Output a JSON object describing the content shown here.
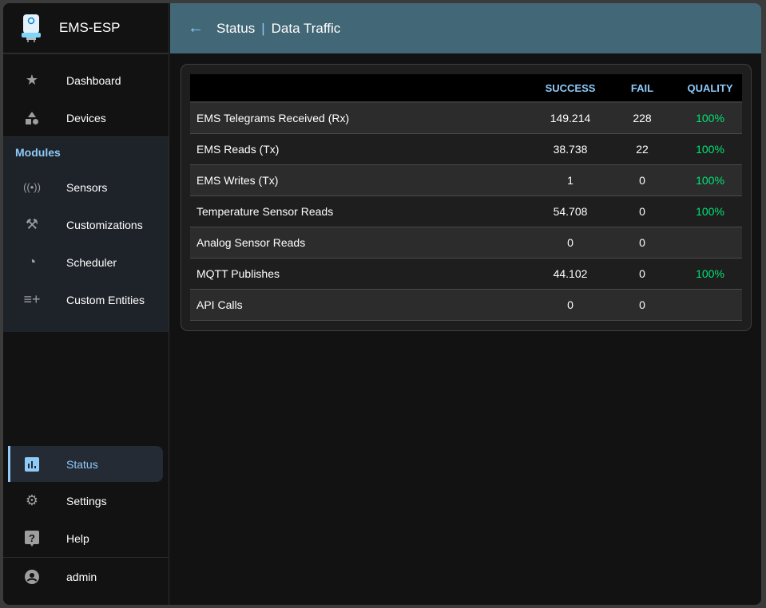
{
  "app": {
    "title": "EMS-ESP"
  },
  "header": {
    "back_icon": "arrow-left-icon",
    "section": "Status",
    "page": "Data Traffic"
  },
  "sidebar": {
    "top": [
      {
        "label": "Dashboard",
        "icon": "star-icon"
      },
      {
        "label": "Devices",
        "icon": "shapes-icon"
      }
    ],
    "modules_title": "Modules",
    "modules": [
      {
        "label": "Sensors",
        "icon": "sensors-icon"
      },
      {
        "label": "Customizations",
        "icon": "tools-icon"
      },
      {
        "label": "Scheduler",
        "icon": "clock-plus-icon"
      },
      {
        "label": "Custom Entities",
        "icon": "playlist-add-icon"
      }
    ],
    "bottom": [
      {
        "label": "Status",
        "icon": "bar-chart-icon",
        "active": true
      },
      {
        "label": "Settings",
        "icon": "gear-icon"
      },
      {
        "label": "Help",
        "icon": "help-icon"
      }
    ],
    "user": {
      "label": "admin",
      "icon": "account-circle-icon"
    }
  },
  "table": {
    "columns": [
      "",
      "SUCCESS",
      "FAIL",
      "QUALITY"
    ],
    "rows": [
      {
        "name": "EMS Telegrams Received (Rx)",
        "success": "149.214",
        "fail": "228",
        "quality": "100%"
      },
      {
        "name": "EMS Reads (Tx)",
        "success": "38.738",
        "fail": "22",
        "quality": "100%"
      },
      {
        "name": "EMS Writes (Tx)",
        "success": "1",
        "fail": "0",
        "quality": "100%"
      },
      {
        "name": "Temperature Sensor Reads",
        "success": "54.708",
        "fail": "0",
        "quality": "100%"
      },
      {
        "name": "Analog Sensor Reads",
        "success": "0",
        "fail": "0",
        "quality": ""
      },
      {
        "name": "MQTT Publishes",
        "success": "44.102",
        "fail": "0",
        "quality": "100%"
      },
      {
        "name": "API Calls",
        "success": "0",
        "fail": "0",
        "quality": ""
      }
    ]
  },
  "colors": {
    "accent": "#90caf9",
    "header_bg": "#426776",
    "quality_good": "#00e676"
  }
}
